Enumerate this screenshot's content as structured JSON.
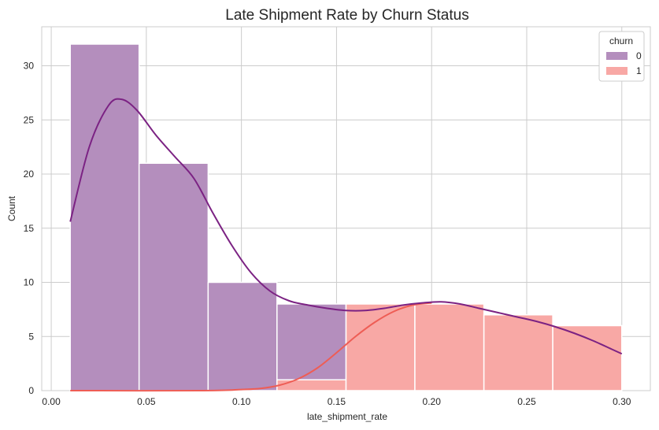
{
  "chart_data": {
    "type": "bar",
    "subtype": "overlapping histogram with KDE curves",
    "title": "Late Shipment Rate by Churn Status",
    "xlabel": "late_shipment_rate",
    "ylabel": "Count",
    "xlim": [
      -0.005,
      0.315
    ],
    "ylim": [
      0,
      33.6
    ],
    "xticks": [
      "0.00",
      "0.05",
      "0.10",
      "0.15",
      "0.20",
      "0.25",
      "0.30"
    ],
    "yticks": [
      "0",
      "5",
      "10",
      "15",
      "20",
      "25",
      "30"
    ],
    "grid": true,
    "legend": {
      "title": "churn",
      "placement": "top-right"
    },
    "bin_edges": [
      0.01,
      0.0462,
      0.0825,
      0.1187,
      0.155,
      0.1912,
      0.2275,
      0.2637,
      0.3
    ],
    "series": [
      {
        "name": "0",
        "color": "#b48ebd",
        "kde_color": "#7b2283",
        "counts": [
          32,
          21,
          10,
          8,
          0,
          0,
          0,
          0
        ],
        "kde": [
          [
            0.01,
            15.6
          ],
          [
            0.02,
            22.5
          ],
          [
            0.03,
            26.3
          ],
          [
            0.037,
            26.9
          ],
          [
            0.045,
            25.9
          ],
          [
            0.055,
            23.6
          ],
          [
            0.065,
            21.6
          ],
          [
            0.075,
            19.6
          ],
          [
            0.085,
            16.4
          ],
          [
            0.095,
            13.4
          ],
          [
            0.105,
            10.9
          ],
          [
            0.115,
            9.2
          ],
          [
            0.125,
            8.3
          ],
          [
            0.135,
            7.9
          ],
          [
            0.145,
            7.6
          ],
          [
            0.155,
            7.4
          ],
          [
            0.165,
            7.4
          ],
          [
            0.175,
            7.6
          ],
          [
            0.185,
            7.9
          ],
          [
            0.195,
            8.1
          ],
          [
            0.205,
            8.2
          ],
          [
            0.215,
            8.0
          ],
          [
            0.225,
            7.6
          ],
          [
            0.235,
            7.2
          ],
          [
            0.245,
            6.8
          ],
          [
            0.255,
            6.4
          ],
          [
            0.265,
            5.9
          ],
          [
            0.275,
            5.3
          ],
          [
            0.285,
            4.6
          ],
          [
            0.295,
            3.8
          ],
          [
            0.3,
            3.4
          ]
        ]
      },
      {
        "name": "1",
        "color": "#f8a8a5",
        "kde_color": "#ee5d55",
        "counts": [
          0,
          0,
          0,
          1,
          8,
          8,
          7,
          6
        ],
        "kde": [
          [
            0.01,
            0.0
          ],
          [
            0.08,
            0.0
          ],
          [
            0.1,
            0.1
          ],
          [
            0.11,
            0.2
          ],
          [
            0.12,
            0.5
          ],
          [
            0.13,
            1.1
          ],
          [
            0.14,
            2.1
          ],
          [
            0.15,
            3.5
          ],
          [
            0.16,
            5.0
          ],
          [
            0.17,
            6.3
          ],
          [
            0.18,
            7.3
          ],
          [
            0.19,
            7.9
          ],
          [
            0.2,
            8.1
          ]
        ]
      }
    ]
  }
}
